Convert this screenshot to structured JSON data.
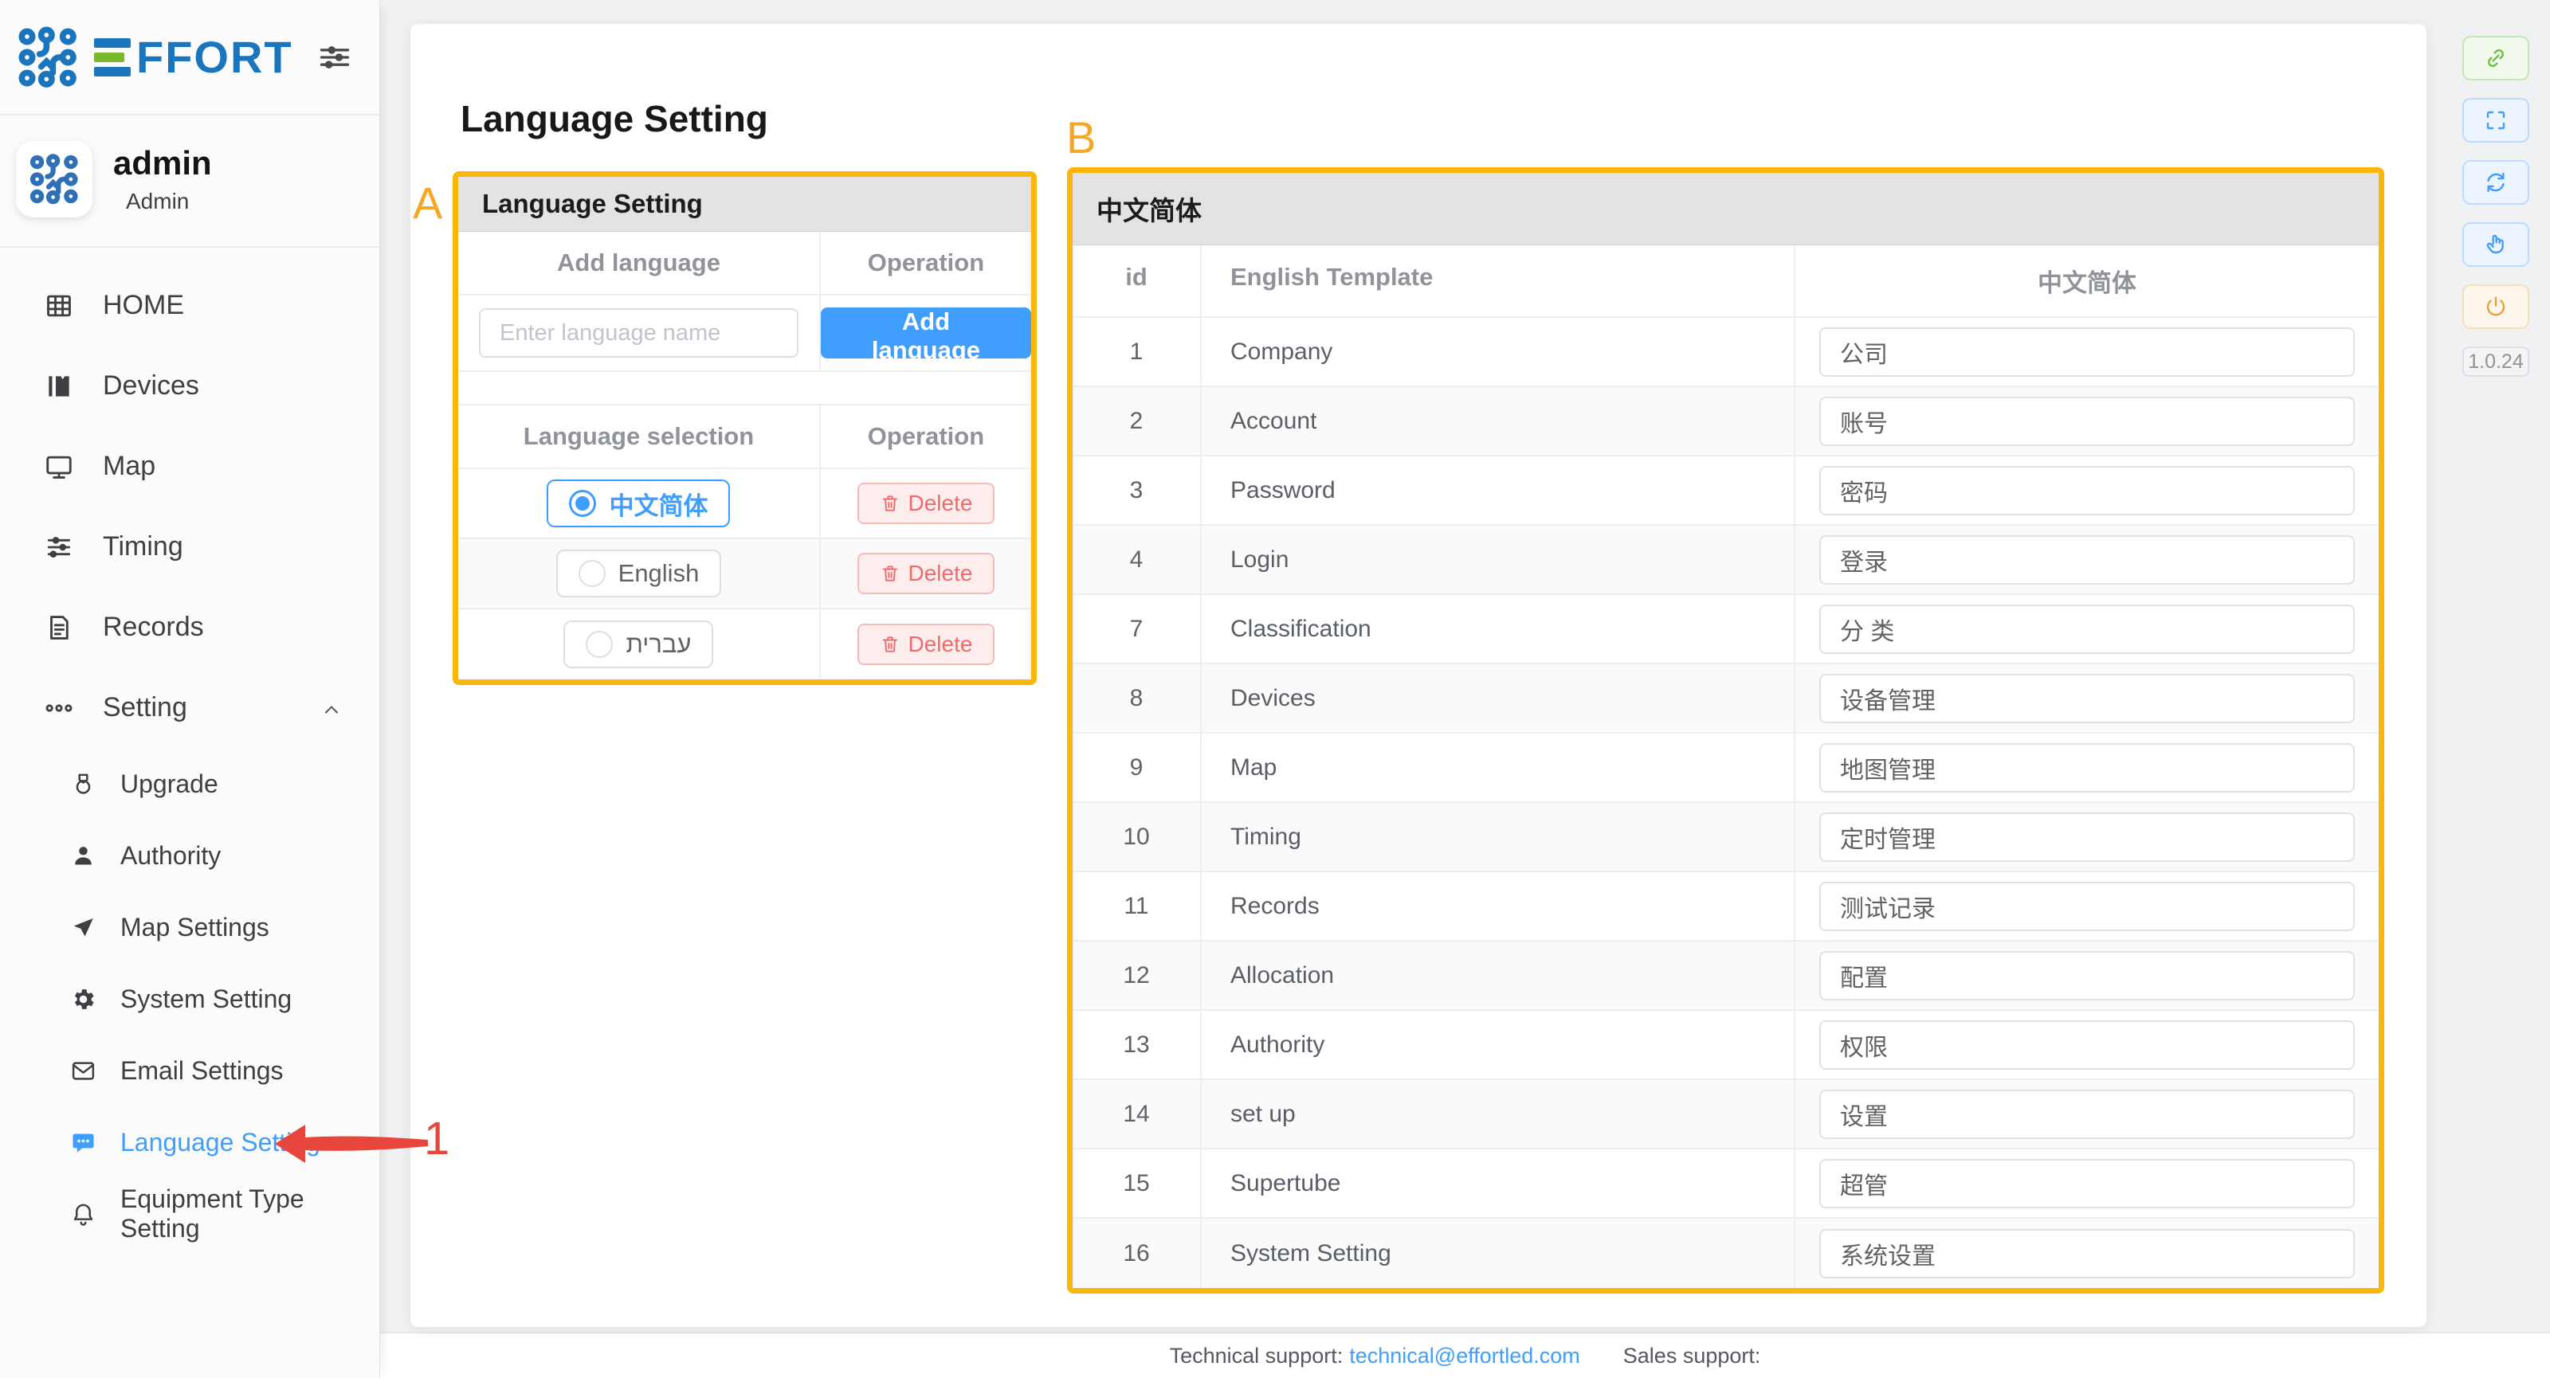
{
  "brand": {
    "name": "EFFORT",
    "name_suffix": "FFORT"
  },
  "user": {
    "name": "admin",
    "role": "Admin"
  },
  "sidebar": {
    "items": [
      {
        "label": "HOME",
        "icon": "grid"
      },
      {
        "label": "Devices",
        "icon": "devices"
      },
      {
        "label": "Map",
        "icon": "monitor"
      },
      {
        "label": "Timing",
        "icon": "sliders"
      },
      {
        "label": "Records",
        "icon": "document"
      },
      {
        "label": "Setting",
        "icon": "dots",
        "expanded": true
      }
    ],
    "sub_items": [
      {
        "label": "Upgrade",
        "icon": "medal",
        "active": false
      },
      {
        "label": "Authority",
        "icon": "user",
        "active": false
      },
      {
        "label": "Map Settings",
        "icon": "paper-plane",
        "active": false
      },
      {
        "label": "System Setting",
        "icon": "gear",
        "active": false
      },
      {
        "label": "Email Settings",
        "icon": "envelope",
        "active": false
      },
      {
        "label": "Language Setting",
        "icon": "chat",
        "active": true
      },
      {
        "label": "Equipment Type Setting",
        "icon": "bell",
        "active": false
      }
    ]
  },
  "page": {
    "title": "Language Setting"
  },
  "panel_a": {
    "annotation": "A",
    "header": "Language Setting",
    "add_table": {
      "col1": "Add language",
      "col2": "Operation",
      "input_placeholder": "Enter language name",
      "button_label": "Add language"
    },
    "select_table": {
      "col1": "Language selection",
      "col2": "Operation",
      "delete_label": "Delete",
      "languages": [
        {
          "name": "中文简体",
          "selected": true
        },
        {
          "name": "English",
          "selected": false
        },
        {
          "name": "עברית",
          "selected": false
        }
      ]
    }
  },
  "panel_b": {
    "annotation": "B",
    "header": "中文简体",
    "columns": [
      "id",
      "English Template",
      "中文简体"
    ],
    "rows": [
      {
        "id": "1",
        "en": "Company",
        "zh": "公司"
      },
      {
        "id": "2",
        "en": "Account",
        "zh": "账号"
      },
      {
        "id": "3",
        "en": "Password",
        "zh": "密码"
      },
      {
        "id": "4",
        "en": "Login",
        "zh": "登录"
      },
      {
        "id": "7",
        "en": "Classification",
        "zh": "分 类"
      },
      {
        "id": "8",
        "en": "Devices",
        "zh": "设备管理"
      },
      {
        "id": "9",
        "en": "Map",
        "zh": "地图管理"
      },
      {
        "id": "10",
        "en": "Timing",
        "zh": "定时管理"
      },
      {
        "id": "11",
        "en": "Records",
        "zh": "测试记录"
      },
      {
        "id": "12",
        "en": "Allocation",
        "zh": "配置"
      },
      {
        "id": "13",
        "en": "Authority",
        "zh": "权限"
      },
      {
        "id": "14",
        "en": "set up",
        "zh": "设置"
      },
      {
        "id": "15",
        "en": "Supertube",
        "zh": "超管"
      },
      {
        "id": "16",
        "en": "System Setting",
        "zh": "系统设置"
      }
    ]
  },
  "annotation_pointer": {
    "number": "1"
  },
  "right_toolbar": {
    "buttons": [
      {
        "icon": "link",
        "type": "success"
      },
      {
        "icon": "fullscreen",
        "type": "primary"
      },
      {
        "icon": "refresh",
        "type": "primary"
      },
      {
        "icon": "pointer",
        "type": "primary"
      },
      {
        "icon": "power",
        "type": "warning"
      }
    ],
    "version": "1.0.24"
  },
  "footer": {
    "technical_label": "Technical support:",
    "technical_email": "technical@effortled.com",
    "sales_label": "Sales support:"
  },
  "colors": {
    "accent": "#409EFF",
    "brand_blue": "#1B75BC",
    "brand_green": "#7AB82E",
    "annotation": "#F6A723",
    "panel_border": "#FBB60B",
    "arrow_red": "#E8463C",
    "danger": "#F56C6C",
    "success": "#67C23A",
    "warning": "#E6A23C"
  }
}
